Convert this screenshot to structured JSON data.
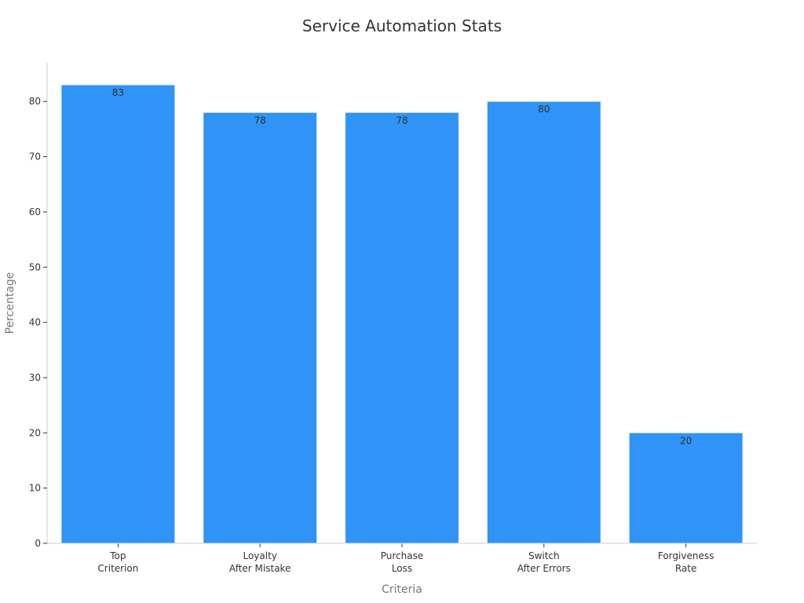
{
  "chart_data": {
    "type": "bar",
    "title": "Service Automation Stats",
    "xlabel": "Criteria",
    "ylabel": "Percentage",
    "categories": [
      [
        "Top",
        "Criterion"
      ],
      [
        "Loyalty",
        "After Mistake"
      ],
      [
        "Purchase",
        "Loss"
      ],
      [
        "Switch",
        "After Errors"
      ],
      [
        "Forgiveness",
        "Rate"
      ]
    ],
    "values": [
      83,
      78,
      78,
      80,
      20
    ],
    "ylim": [
      0,
      87
    ],
    "yticks": [
      0,
      10,
      20,
      30,
      40,
      50,
      60,
      70,
      80
    ],
    "grid": false,
    "legend": "none",
    "bar_color": "#2f93f7",
    "bar_edge_color": "#d8e6f5"
  }
}
